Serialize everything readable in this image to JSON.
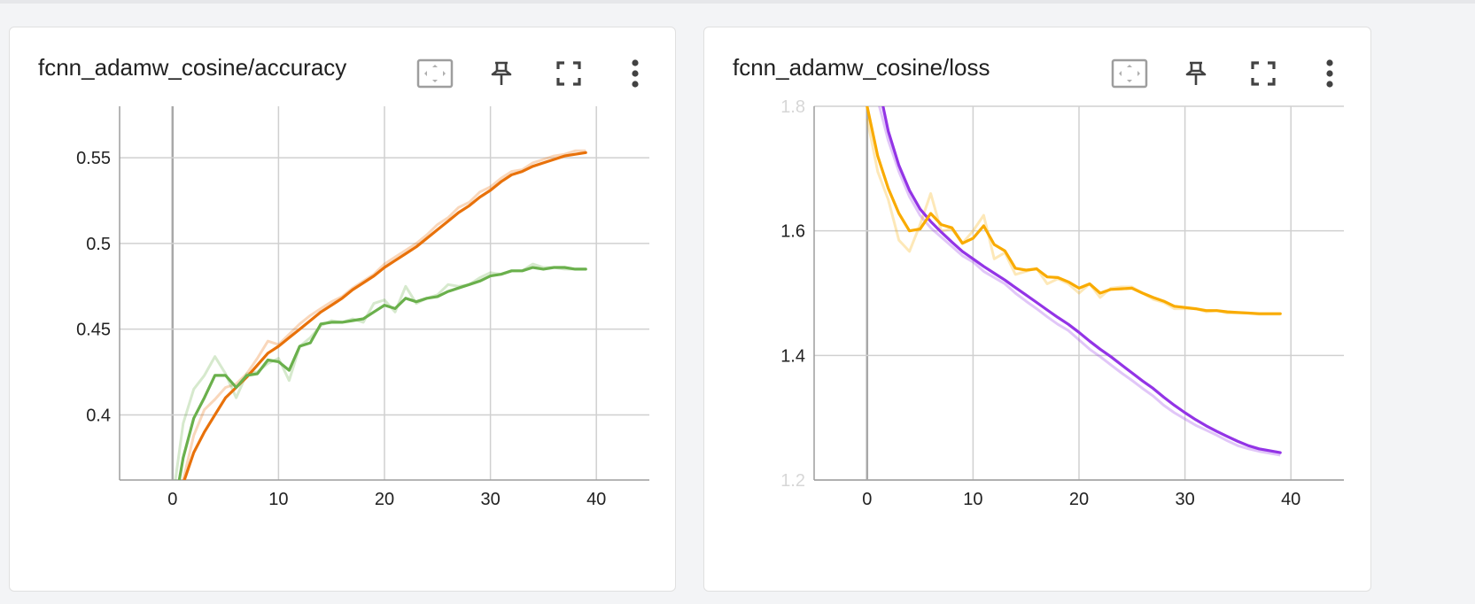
{
  "colors": {
    "grid": "#d0d0d0",
    "axis": "#9e9e9e",
    "acc_train": "#e8710a",
    "acc_val": "#6ab04c",
    "loss_train": "#f9ab00",
    "loss_val": "#9334e6"
  },
  "toolbar_icons": [
    "fit-domain-icon",
    "pin-icon",
    "fullscreen-icon",
    "more-vert-icon"
  ],
  "chart_data": [
    {
      "type": "line",
      "title": "fcnn_adamw_cosine/accuracy",
      "xlabel": "",
      "ylabel": "",
      "xlim": [
        -5,
        45
      ],
      "ylim": [
        0.362,
        0.58
      ],
      "x_ticks": [
        0,
        10,
        20,
        30,
        40
      ],
      "y_ticks": [
        0.4,
        0.45,
        0.5,
        0.55
      ],
      "y_tick_labels": [
        "0.4",
        "0.45",
        "0.5",
        "0.55"
      ],
      "grid": true,
      "legend": "none",
      "series": [
        {
          "color_key": "acc_train",
          "x": [
            1,
            2,
            3,
            4,
            5,
            6,
            7,
            8,
            9,
            10,
            11,
            12,
            13,
            14,
            15,
            16,
            17,
            18,
            19,
            20,
            21,
            22,
            23,
            24,
            25,
            26,
            27,
            28,
            29,
            30,
            31,
            32,
            33,
            34,
            35,
            36,
            37,
            38,
            39
          ],
          "raw": [
            0.362,
            0.388,
            0.403,
            0.409,
            0.416,
            0.418,
            0.424,
            0.433,
            0.443,
            0.441,
            0.447,
            0.453,
            0.458,
            0.462,
            0.466,
            0.469,
            0.474,
            0.478,
            0.482,
            0.488,
            0.492,
            0.496,
            0.5,
            0.505,
            0.511,
            0.515,
            0.521,
            0.524,
            0.53,
            0.533,
            0.538,
            0.542,
            0.543,
            0.547,
            0.549,
            0.551,
            0.552,
            0.554,
            0.554
          ],
          "smoothed": [
            0.36,
            0.378,
            0.39,
            0.4,
            0.41,
            0.416,
            0.422,
            0.429,
            0.436,
            0.44,
            0.445,
            0.45,
            0.455,
            0.46,
            0.464,
            0.468,
            0.473,
            0.477,
            0.481,
            0.486,
            0.49,
            0.494,
            0.498,
            0.503,
            0.508,
            0.513,
            0.518,
            0.522,
            0.527,
            0.531,
            0.536,
            0.54,
            0.542,
            0.545,
            0.547,
            0.549,
            0.551,
            0.552,
            0.553
          ]
        },
        {
          "color_key": "acc_val",
          "x": [
            0,
            1,
            2,
            3,
            4,
            5,
            6,
            7,
            8,
            9,
            10,
            11,
            12,
            13,
            14,
            15,
            16,
            17,
            18,
            19,
            20,
            21,
            22,
            23,
            24,
            25,
            26,
            27,
            28,
            29,
            30,
            31,
            32,
            33,
            34,
            35,
            36,
            37,
            38,
            39
          ],
          "raw": [
            0.35,
            0.395,
            0.415,
            0.423,
            0.434,
            0.424,
            0.41,
            0.424,
            0.425,
            0.43,
            0.433,
            0.42,
            0.44,
            0.445,
            0.452,
            0.455,
            0.454,
            0.456,
            0.454,
            0.465,
            0.467,
            0.46,
            0.475,
            0.465,
            0.468,
            0.47,
            0.476,
            0.475,
            0.476,
            0.48,
            0.483,
            0.482,
            0.484,
            0.484,
            0.488,
            0.486,
            0.486,
            0.485,
            0.485,
            0.485
          ],
          "smoothed": [
            0.34,
            0.375,
            0.398,
            0.41,
            0.423,
            0.423,
            0.416,
            0.423,
            0.424,
            0.432,
            0.431,
            0.426,
            0.44,
            0.442,
            0.453,
            0.454,
            0.454,
            0.455,
            0.456,
            0.46,
            0.464,
            0.462,
            0.468,
            0.466,
            0.468,
            0.469,
            0.472,
            0.474,
            0.476,
            0.478,
            0.481,
            0.482,
            0.484,
            0.484,
            0.486,
            0.485,
            0.486,
            0.486,
            0.485,
            0.485
          ]
        }
      ]
    },
    {
      "type": "line",
      "title": "fcnn_adamw_cosine/loss",
      "xlabel": "",
      "ylabel": "",
      "xlim": [
        -5,
        45
      ],
      "ylim": [
        1.2,
        1.8
      ],
      "x_ticks": [
        0,
        10,
        20,
        30,
        40
      ],
      "y_ticks": [
        1.2,
        1.4,
        1.6,
        1.8
      ],
      "y_tick_labels": [
        "1.2",
        "1.4",
        "1.6",
        "1.8"
      ],
      "y_tick_faded": [
        true,
        false,
        false,
        true
      ],
      "grid": true,
      "legend": "none",
      "series": [
        {
          "color_key": "loss_val",
          "x": [
            1,
            2,
            3,
            4,
            5,
            6,
            7,
            8,
            9,
            10,
            11,
            12,
            13,
            14,
            15,
            16,
            17,
            18,
            19,
            20,
            21,
            22,
            23,
            24,
            25,
            26,
            27,
            28,
            29,
            30,
            31,
            32,
            33,
            34,
            35,
            36,
            37,
            38,
            39
          ],
          "raw": [
            1.81,
            1.745,
            1.695,
            1.655,
            1.625,
            1.605,
            1.59,
            1.575,
            1.56,
            1.55,
            1.535,
            1.525,
            1.515,
            1.5,
            1.487,
            1.475,
            1.462,
            1.45,
            1.44,
            1.425,
            1.41,
            1.398,
            1.385,
            1.372,
            1.36,
            1.347,
            1.335,
            1.32,
            1.308,
            1.298,
            1.288,
            1.28,
            1.272,
            1.263,
            1.255,
            1.25,
            1.246,
            1.243,
            1.24
          ],
          "smoothed": [
            1.84,
            1.76,
            1.705,
            1.665,
            1.635,
            1.615,
            1.598,
            1.582,
            1.567,
            1.555,
            1.543,
            1.532,
            1.521,
            1.509,
            1.497,
            1.485,
            1.473,
            1.461,
            1.45,
            1.437,
            1.423,
            1.41,
            1.398,
            1.385,
            1.372,
            1.359,
            1.347,
            1.333,
            1.32,
            1.308,
            1.297,
            1.287,
            1.278,
            1.27,
            1.262,
            1.255,
            1.25,
            1.247,
            1.244
          ]
        },
        {
          "color_key": "loss_train",
          "x": [
            0,
            1,
            2,
            3,
            4,
            5,
            6,
            7,
            8,
            9,
            10,
            11,
            12,
            13,
            14,
            15,
            16,
            17,
            18,
            19,
            20,
            21,
            22,
            23,
            24,
            25,
            26,
            27,
            28,
            29,
            30,
            31,
            32,
            33,
            34,
            35,
            36,
            37,
            38,
            39
          ],
          "raw": [
            1.78,
            1.695,
            1.65,
            1.585,
            1.567,
            1.61,
            1.66,
            1.6,
            1.603,
            1.58,
            1.6,
            1.625,
            1.555,
            1.565,
            1.53,
            1.535,
            1.54,
            1.515,
            1.523,
            1.515,
            1.5,
            1.515,
            1.493,
            1.508,
            1.51,
            1.51,
            1.5,
            1.49,
            1.485,
            1.475,
            1.475,
            1.475,
            1.47,
            1.472,
            1.468,
            1.468,
            1.468,
            1.466,
            1.466,
            1.466
          ],
          "smoothed": [
            1.8,
            1.72,
            1.668,
            1.628,
            1.6,
            1.603,
            1.628,
            1.61,
            1.605,
            1.58,
            1.588,
            1.608,
            1.578,
            1.568,
            1.54,
            1.537,
            1.539,
            1.526,
            1.525,
            1.518,
            1.508,
            1.515,
            1.5,
            1.506,
            1.507,
            1.508,
            1.5,
            1.493,
            1.487,
            1.479,
            1.477,
            1.475,
            1.472,
            1.472,
            1.47,
            1.469,
            1.468,
            1.467,
            1.467,
            1.467
          ]
        }
      ]
    }
  ]
}
